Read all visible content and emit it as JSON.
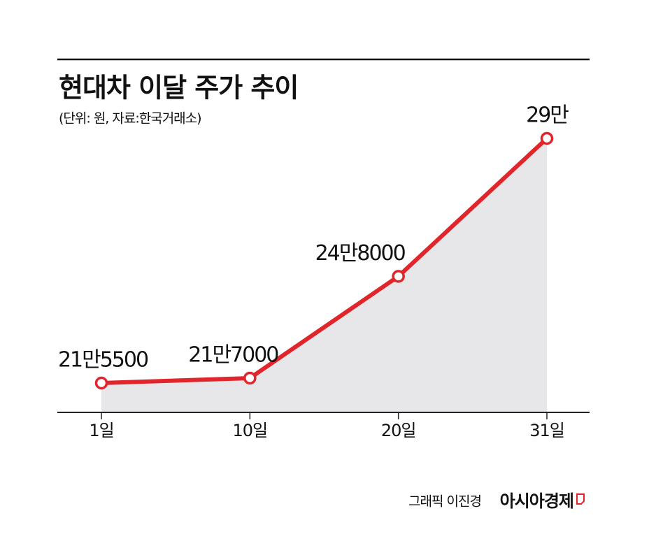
{
  "chart_data": {
    "type": "line",
    "title": "현대차 이달 주가 추이",
    "subtitle": "(단위: 원, 자료:한국거래소)",
    "categories": [
      "1일",
      "10일",
      "20일",
      "31일"
    ],
    "values": [
      215500,
      217000,
      248000,
      290000
    ],
    "value_labels": [
      "21만5500",
      "21만7000",
      "24만8000",
      "29만"
    ],
    "color": "#e0252b",
    "area_color": "#e7e7e9",
    "credit": "그래픽 이진경",
    "logo": "아시아경제"
  }
}
